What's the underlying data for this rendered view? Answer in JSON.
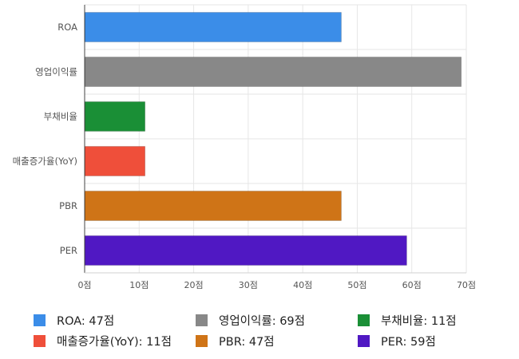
{
  "chart_data": {
    "type": "bar",
    "orientation": "horizontal",
    "categories": [
      "ROA",
      "영업이익률",
      "부채비율",
      "매출증가율(YoY)",
      "PBR",
      "PER"
    ],
    "values": [
      47,
      69,
      11,
      11,
      47,
      59
    ],
    "colors": [
      "#3b8de8",
      "#888888",
      "#1a8f36",
      "#ef4f3a",
      "#cf7417",
      "#5018c3"
    ],
    "xlim": [
      0,
      70
    ],
    "xticks": [
      0,
      10,
      20,
      30,
      40,
      50,
      60,
      70
    ],
    "tick_labels": [
      "0점",
      "10점",
      "20점",
      "30점",
      "40점",
      "50점",
      "60점",
      "70점"
    ],
    "grid": true,
    "legend_position": "bottom",
    "title": "",
    "xlabel": "",
    "ylabel": ""
  },
  "legend": [
    {
      "label": "ROA: 47점",
      "color": "#3b8de8"
    },
    {
      "label": "영업이익률: 69점",
      "color": "#888888"
    },
    {
      "label": "부채비율: 11점",
      "color": "#1a8f36"
    },
    {
      "label": "매출증가율(YoY): 11점",
      "color": "#ef4f3a"
    },
    {
      "label": "PBR: 47점",
      "color": "#cf7417"
    },
    {
      "label": "PER: 59점",
      "color": "#5018c3"
    }
  ]
}
